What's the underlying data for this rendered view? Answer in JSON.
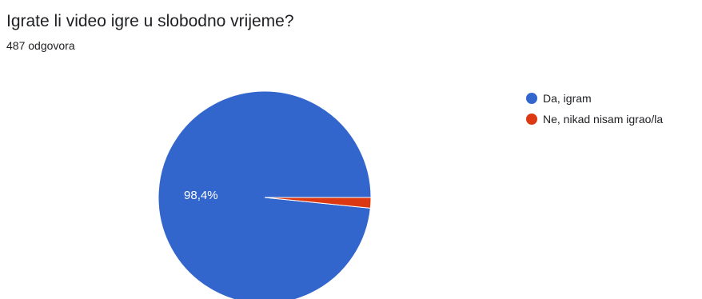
{
  "header": {
    "title": "Igrate li video igre u slobodno vrijeme?",
    "subtitle": "487 odgovora"
  },
  "chart_data": {
    "type": "pie",
    "categories": [
      "Da, igram",
      "Ne, nikad nisam igrao/la"
    ],
    "values": [
      98.4,
      1.6
    ],
    "data_labels": [
      "98,4%",
      ""
    ],
    "colors": [
      "#3366cc",
      "#dc3912"
    ],
    "legend_position": "right"
  }
}
